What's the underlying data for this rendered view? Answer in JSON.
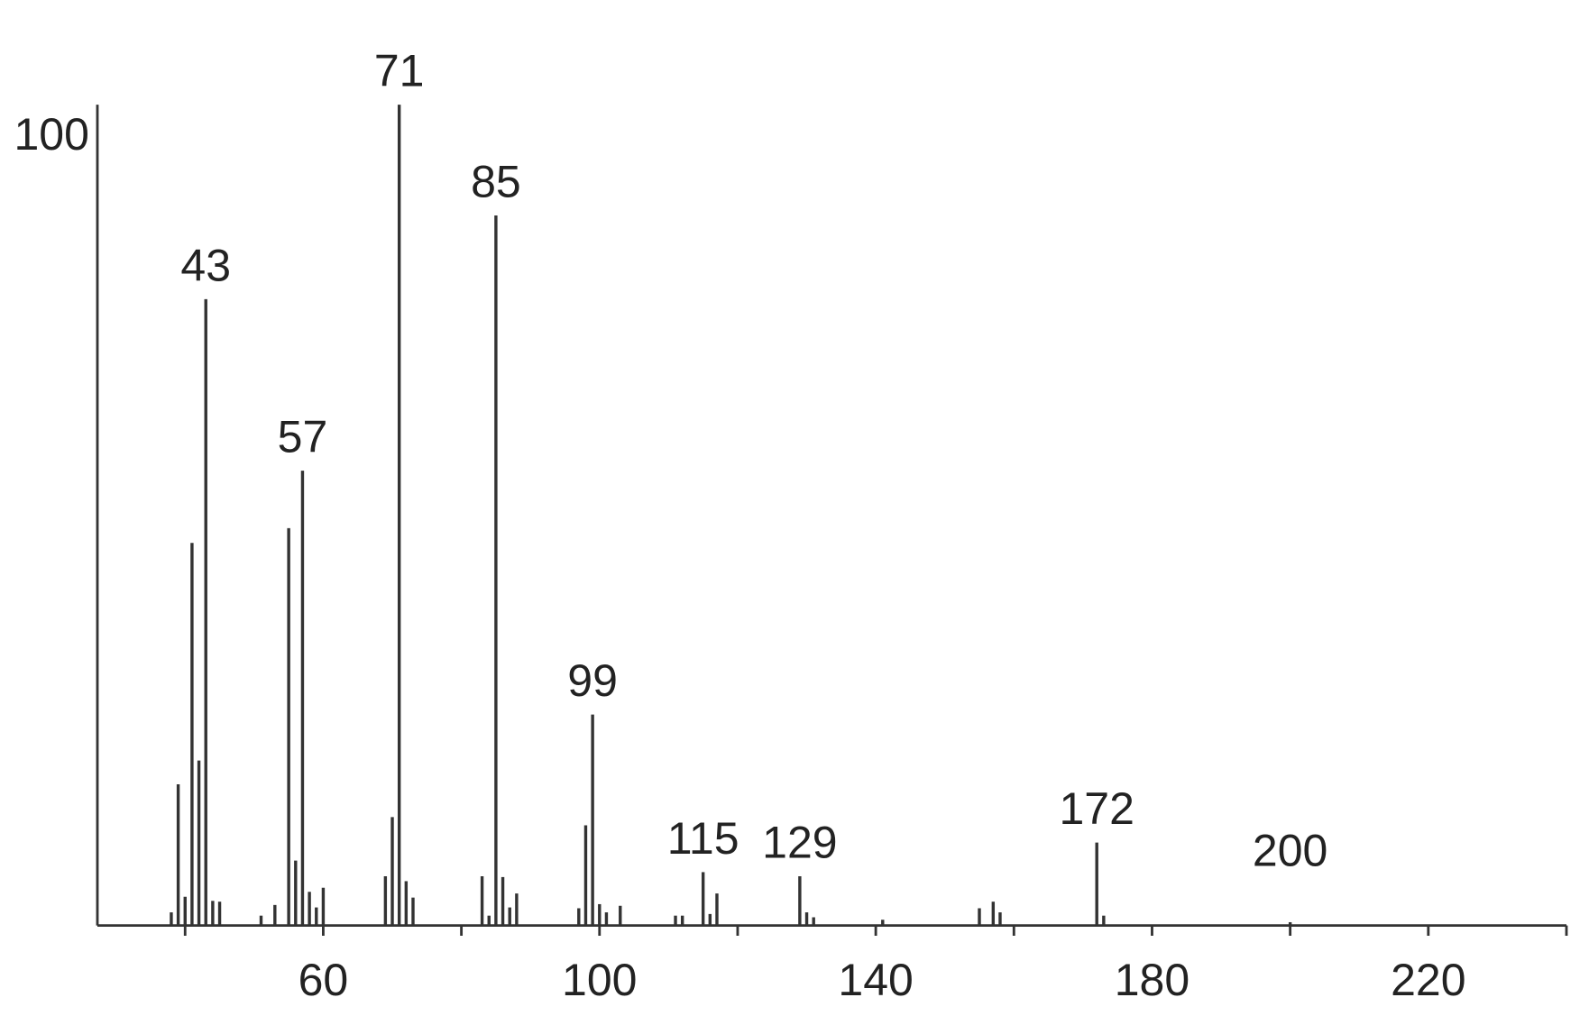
{
  "chart_data": {
    "type": "bar",
    "x": [
      38,
      39,
      40,
      41,
      42,
      43,
      44,
      45,
      51,
      53,
      55,
      56,
      57,
      58,
      59,
      60,
      69,
      70,
      71,
      72,
      73,
      83,
      84,
      85,
      86,
      87,
      88,
      97,
      98,
      99,
      100,
      101,
      103,
      111,
      112,
      115,
      116,
      117,
      129,
      130,
      131,
      141,
      155,
      157,
      158,
      172,
      173,
      200
    ],
    "values": [
      1.6,
      17.2,
      3.5,
      46.6,
      20.1,
      76.3,
      3.0,
      2.9,
      1.2,
      2.5,
      48.4,
      7.9,
      55.4,
      4.1,
      2.2,
      4.6,
      6.0,
      13.2,
      100,
      5.4,
      3.4,
      6.0,
      1.2,
      86.5,
      5.9,
      2.2,
      3.9,
      2.1,
      12.2,
      25.7,
      2.6,
      1.6,
      2.4,
      1.2,
      1.2,
      6.5,
      1.4,
      3.9,
      6.0,
      1.6,
      1.0,
      0.7,
      2.1,
      2.9,
      1.6,
      10.1,
      1.2,
      0.4
    ],
    "color": "#333333",
    "labeled_peaks": [
      43,
      57,
      71,
      85,
      99,
      115,
      129,
      172,
      200
    ],
    "xlim": [
      27.3,
      240
    ],
    "xticks": [
      60,
      100,
      140,
      180,
      220
    ],
    "minor_xticks": [
      40,
      80,
      120,
      160,
      200,
      240
    ],
    "ylim": [
      0,
      100
    ],
    "yticks": [
      100
    ]
  }
}
